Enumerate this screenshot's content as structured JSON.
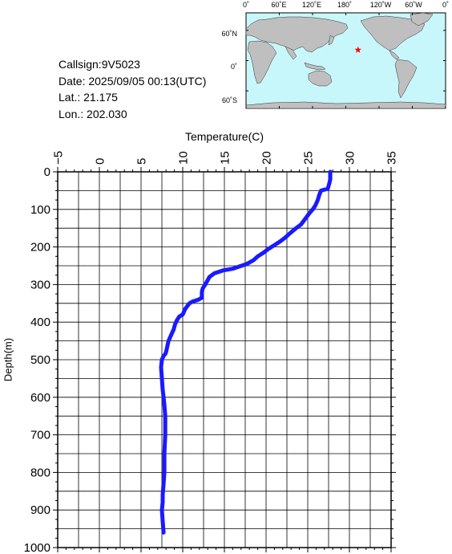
{
  "info": {
    "callsign": "Callsign:9V5023",
    "date": "Date:  2025/09/05 00:13(UTC)",
    "lat": "Lat.:  21.175",
    "lon": "Lon.:  202.030"
  },
  "map": {
    "lon_labels": [
      "0˚",
      "60˚E",
      "120˚E",
      "180˚",
      "120˚W",
      "60˚W",
      "0˚"
    ],
    "lat_labels": [
      "60˚N",
      "0˚",
      "60˚S"
    ],
    "ocean_color": "#c8f7fb",
    "land_color": "#bfbfbf",
    "marker": {
      "lat": 21.175,
      "lon": 202.03,
      "symbol": "star",
      "color": "#ff0000"
    }
  },
  "chart_data": {
    "type": "line",
    "xlabel": "Temperature(C)",
    "ylabel": "Depth(m)",
    "xlim": [
      -5,
      35
    ],
    "ylim": [
      0,
      1000
    ],
    "y_inverted": true,
    "x_axis_position": "top",
    "x_ticks": [
      -5,
      0,
      5,
      10,
      15,
      20,
      25,
      30,
      35
    ],
    "y_ticks": [
      0,
      100,
      200,
      300,
      400,
      500,
      600,
      700,
      800,
      900,
      1000
    ],
    "grid": true,
    "line_color": "#1a1aff",
    "series": [
      {
        "temperature": [
          27.7,
          27.7,
          27.6,
          27.4,
          26.6,
          26.4,
          26.2,
          25.9,
          25.6,
          25.2,
          24.7,
          24.2,
          23.6,
          22.8,
          22.3,
          21.7,
          21.0,
          20.3,
          19.7,
          19.0,
          18.5,
          17.7,
          16.8,
          16.0,
          14.9,
          13.8,
          13.2,
          12.9,
          12.7,
          12.4,
          12.3,
          12.3,
          11.9,
          11.2,
          10.8,
          10.3,
          10.0,
          9.6,
          9.3,
          9.1,
          8.9,
          8.6,
          8.3,
          8.1,
          8.0,
          7.9,
          7.7,
          7.5,
          7.4,
          7.5,
          7.6,
          7.7,
          7.8,
          7.9,
          7.9,
          7.8,
          7.8,
          7.7,
          7.6,
          7.6,
          7.5,
          7.6,
          7.7
        ],
        "depth": [
          0,
          20,
          30,
          45,
          50,
          60,
          75,
          90,
          100,
          110,
          125,
          140,
          150,
          165,
          175,
          185,
          195,
          205,
          215,
          225,
          235,
          245,
          252,
          258,
          262,
          270,
          280,
          292,
          300,
          310,
          320,
          335,
          340,
          345,
          350,
          365,
          380,
          385,
          395,
          405,
          420,
          435,
          450,
          470,
          480,
          485,
          490,
          500,
          520,
          550,
          580,
          600,
          620,
          650,
          700,
          750,
          800,
          830,
          860,
          880,
          900,
          930,
          960
        ]
      }
    ]
  }
}
